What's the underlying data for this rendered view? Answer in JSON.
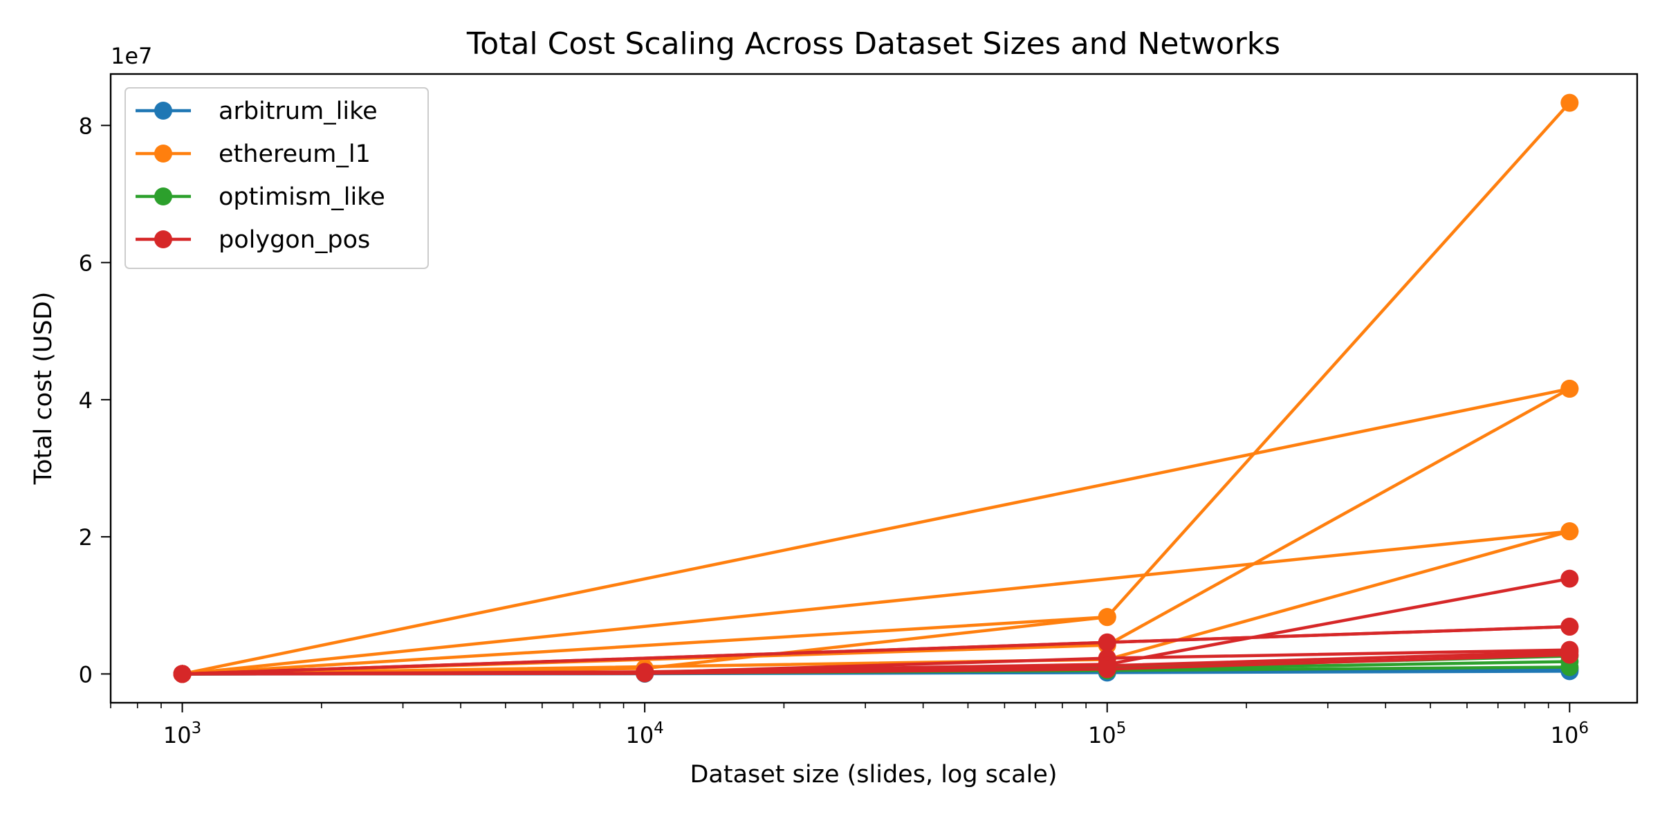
{
  "chart_data": {
    "type": "line",
    "title": "Total Cost Scaling Across Dataset Sizes and Networks",
    "xlabel": "Dataset size (slides, log scale)",
    "ylabel": "Total cost (USD)",
    "y_offset_label": "1e7",
    "x_scale": "log",
    "xlim": [
      700,
      1400000
    ],
    "ylim": [
      -4200000,
      87500000
    ],
    "x_ticks": [
      {
        "value": 1000,
        "base": "10",
        "exp": "3"
      },
      {
        "value": 10000,
        "base": "10",
        "exp": "4"
      },
      {
        "value": 100000,
        "base": "10",
        "exp": "5"
      },
      {
        "value": 1000000,
        "base": "10",
        "exp": "6"
      }
    ],
    "y_ticks": [
      {
        "value": 0,
        "label": "0"
      },
      {
        "value": 20000000,
        "label": "2"
      },
      {
        "value": 40000000,
        "label": "4"
      },
      {
        "value": 60000000,
        "label": "6"
      },
      {
        "value": 80000000,
        "label": "8"
      }
    ],
    "grid": false,
    "legend_position": "top-left",
    "series": [
      {
        "name": "arbitrum_like",
        "color": "#1f77b4",
        "x": [
          1000,
          10000,
          100000,
          1000000
        ],
        "y": [
          0,
          40000,
          200000,
          400000
        ]
      },
      {
        "name": "arbitrum_like",
        "color": "#1f77b4",
        "x": [
          1000,
          10000,
          100000,
          1000000
        ],
        "y": [
          0,
          60000,
          300000,
          600000
        ]
      },
      {
        "name": "arbitrum_like",
        "color": "#1f77b4",
        "x": [
          1000,
          10000,
          100000,
          1000000
        ],
        "y": [
          0,
          80000,
          400000,
          800000
        ]
      },
      {
        "name": "optimism_like",
        "color": "#2ca02c",
        "x": [
          1000,
          10000,
          100000,
          1000000
        ],
        "y": [
          0,
          100000,
          500000,
          1000000
        ]
      },
      {
        "name": "optimism_like",
        "color": "#2ca02c",
        "x": [
          1000,
          10000,
          100000,
          1000000
        ],
        "y": [
          0,
          150000,
          700000,
          1800000
        ]
      },
      {
        "name": "optimism_like",
        "color": "#2ca02c",
        "x": [
          1000,
          10000,
          100000,
          1000000
        ],
        "y": [
          0,
          200000,
          900000,
          2600000
        ]
      },
      {
        "name": "ethereum_l1",
        "color": "#ff7f0e",
        "x": [
          1000,
          100000,
          1000000
        ],
        "y": [
          0,
          8300000,
          83300000
        ]
      },
      {
        "name": "ethereum_l1",
        "color": "#ff7f0e",
        "x": [
          1000,
          100000,
          1000000
        ],
        "y": [
          0,
          4200000,
          41600000
        ]
      },
      {
        "name": "ethereum_l1",
        "color": "#ff7f0e",
        "x": [
          1000,
          100000,
          1000000
        ],
        "y": [
          0,
          2100000,
          20800000
        ]
      },
      {
        "name": "ethereum_l1",
        "color": "#ff7f0e",
        "x": [
          1000,
          1000000
        ],
        "y": [
          0,
          41600000
        ]
      },
      {
        "name": "ethereum_l1",
        "color": "#ff7f0e",
        "x": [
          1000,
          1000000
        ],
        "y": [
          0,
          20800000
        ]
      },
      {
        "name": "ethereum_l1",
        "color": "#ff7f0e",
        "x": [
          1000,
          10000,
          100000
        ],
        "y": [
          0,
          800000,
          8300000
        ]
      },
      {
        "name": "polygon_pos",
        "color": "#d62728",
        "x": [
          1000,
          10000,
          100000,
          1000000
        ],
        "y": [
          0,
          300000,
          1400000,
          13900000
        ]
      },
      {
        "name": "polygon_pos",
        "color": "#d62728",
        "x": [
          1000,
          1000000
        ],
        "y": [
          0,
          6900000
        ]
      },
      {
        "name": "polygon_pos",
        "color": "#d62728",
        "x": [
          1000,
          100000,
          1000000
        ],
        "y": [
          0,
          4600000,
          6900000
        ]
      },
      {
        "name": "polygon_pos",
        "color": "#d62728",
        "x": [
          1000,
          10000,
          100000,
          1000000
        ],
        "y": [
          0,
          200000,
          2300000,
          3500000
        ]
      },
      {
        "name": "polygon_pos",
        "color": "#d62728",
        "x": [
          1000,
          10000,
          100000,
          1000000
        ],
        "y": [
          0,
          100000,
          1200000,
          3200000
        ]
      },
      {
        "name": "polygon_pos",
        "color": "#d62728",
        "x": [
          1000,
          10000,
          100000,
          1000000
        ],
        "y": [
          0,
          100000,
          700000,
          2800000
        ]
      }
    ],
    "legend": [
      {
        "name": "arbitrum_like",
        "color": "#1f77b4"
      },
      {
        "name": "ethereum_l1",
        "color": "#ff7f0e"
      },
      {
        "name": "optimism_like",
        "color": "#2ca02c"
      },
      {
        "name": "polygon_pos",
        "color": "#d62728"
      }
    ]
  }
}
